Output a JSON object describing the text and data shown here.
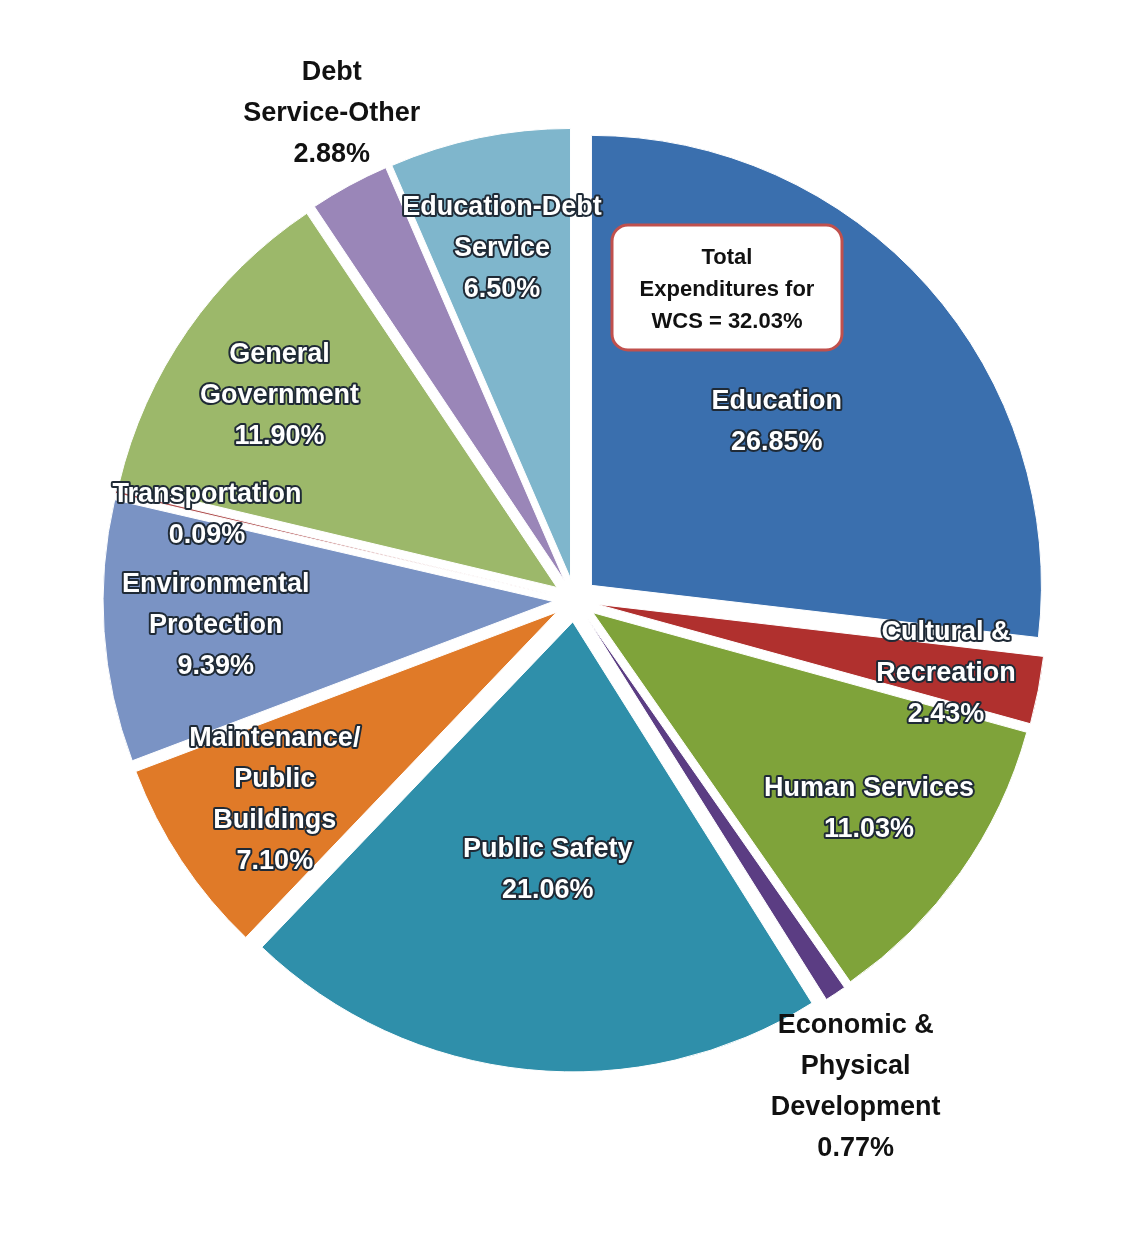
{
  "chart_data": {
    "type": "pie",
    "categories": [
      "Education",
      "Cultural & Recreation",
      "Human Services",
      "Economic & Physical Development",
      "Public Safety",
      "Maintenance/ Public Buildings",
      "Environmental Protection",
      "Transportation",
      "General Government",
      "Debt Service-Other",
      "Education-Debt Service"
    ],
    "values": [
      26.85,
      2.43,
      11.03,
      0.77,
      21.06,
      7.1,
      9.39,
      0.09,
      11.9,
      2.88,
      6.5
    ],
    "value_labels": [
      "26.85%",
      "2.43%",
      "11.03%",
      "0.77%",
      "21.06%",
      "7.10%",
      "9.39%",
      "0.09%",
      "11.90%",
      "2.88%",
      "6.50%"
    ],
    "colors": [
      "#3a6fae",
      "#b0302e",
      "#7fa33a",
      "#5b3d83",
      "#2f8faa",
      "#e07a28",
      "#7a93c4",
      "#b05050",
      "#9cb86a",
      "#9a86b8",
      "#7fb6cc"
    ],
    "annotations": [
      "Total Expenditures for WCS = 32.03%"
    ]
  }
}
